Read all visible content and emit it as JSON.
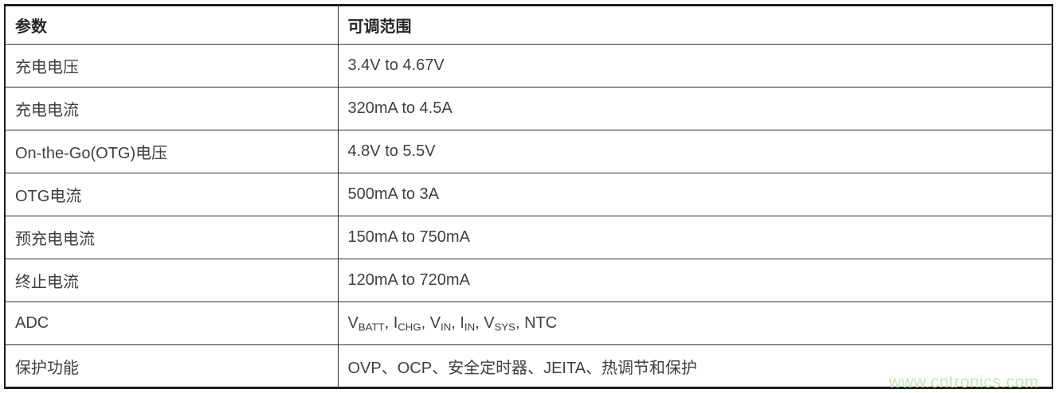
{
  "table": {
    "header": {
      "param_label": "参数",
      "range_label": "可调范围"
    },
    "rows": [
      {
        "param": "充电电压",
        "range": "3.4V to 4.67V"
      },
      {
        "param": "充电电流",
        "range": "320mA to 4.5A"
      },
      {
        "param": "On-the-Go(OTG)电压",
        "range": "4.8V to 5.5V"
      },
      {
        "param": "OTG电流",
        "range": "500mA to 3A"
      },
      {
        "param": "预充电电流",
        "range": "150mA to 750mA"
      },
      {
        "param": "终止电流",
        "range": "120mA to 720mA"
      },
      {
        "param": "ADC",
        "range_segments": [
          {
            "text": "V",
            "sub": "BATT"
          },
          {
            "text": ", "
          },
          {
            "text": "I",
            "sub": "CHG"
          },
          {
            "text": ", "
          },
          {
            "text": "V",
            "sub": "IN"
          },
          {
            "text": ", "
          },
          {
            "text": "I",
            "sub": "IN"
          },
          {
            "text": ", "
          },
          {
            "text": "V",
            "sub": "SYS"
          },
          {
            "text": ", "
          },
          {
            "text": "NTC"
          }
        ]
      },
      {
        "param": "保护功能",
        "range": "OVP、OCP、安全定时器、JEITA、热调节和保护"
      }
    ],
    "colors": {
      "border": "#1c1c1c",
      "inner_border": "#2d2d2d",
      "text": "#404040",
      "header_text": "#262626"
    }
  },
  "watermark": {
    "text": "www.cntronics.com",
    "color": "#c6e7b4"
  }
}
